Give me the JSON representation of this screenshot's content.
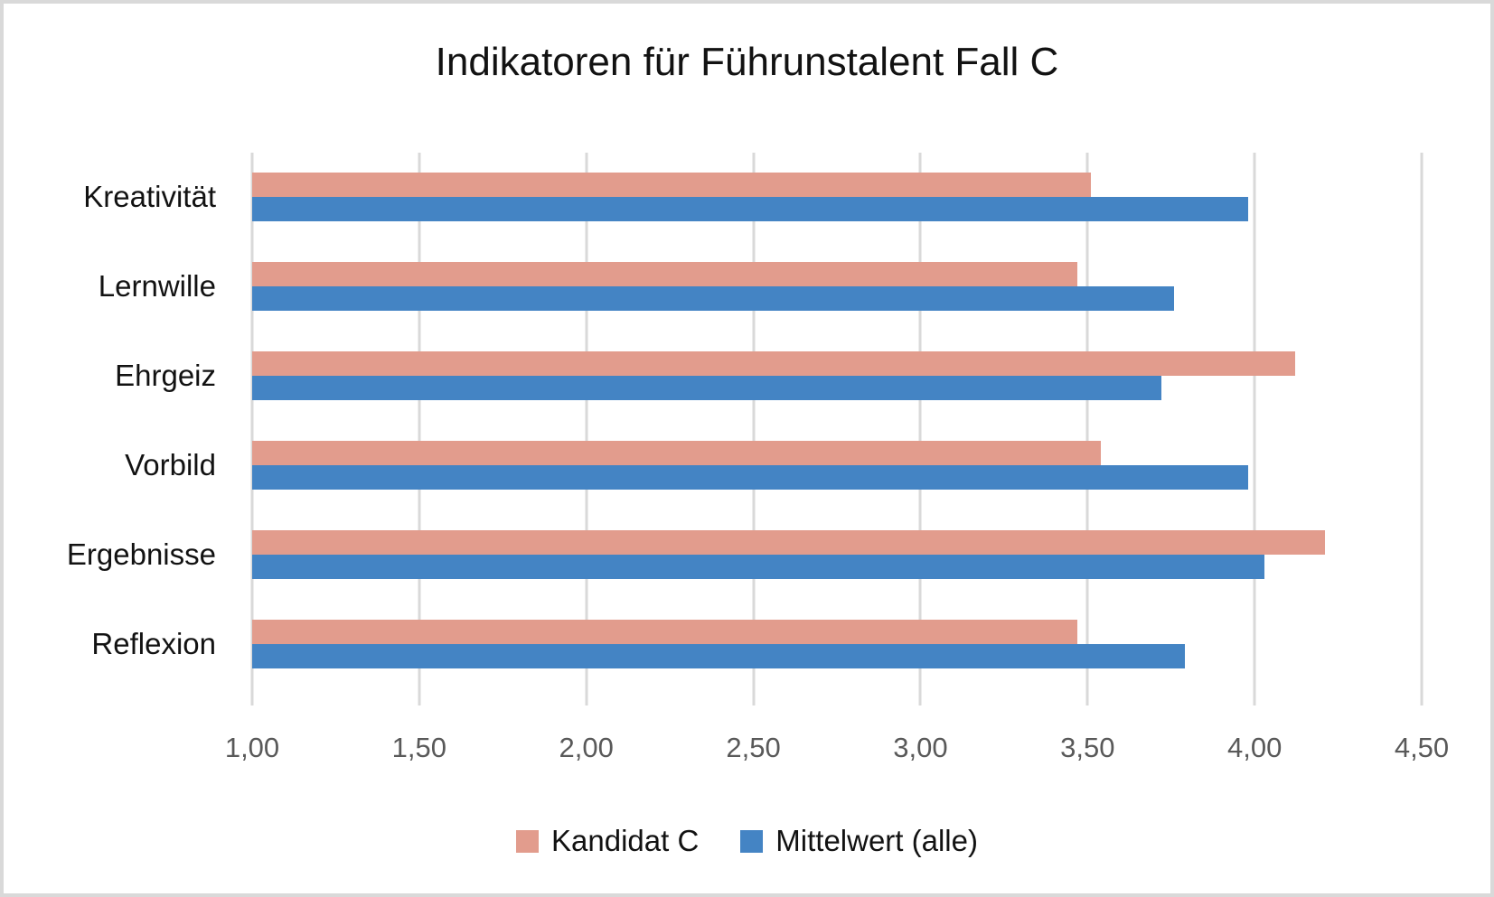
{
  "frame": {
    "border_color": "#d9d9d9",
    "background": "#ffffff"
  },
  "chart_data": {
    "type": "bar",
    "orientation": "horizontal",
    "title": "Indikatoren für Führunstalent Fall C",
    "categories": [
      "Kreativität",
      "Lernwille",
      "Ehrgeiz",
      "Vorbild",
      "Ergebnisse",
      "Reflexion"
    ],
    "series": [
      {
        "name": "Kandidat C",
        "color": "#e29c8d",
        "values": [
          3.51,
          3.47,
          4.12,
          3.54,
          4.21,
          3.47
        ]
      },
      {
        "name": "Mittelwert (alle)",
        "color": "#4484c4",
        "values": [
          3.98,
          3.76,
          3.72,
          3.98,
          4.03,
          3.79
        ]
      }
    ],
    "x_axis": {
      "min": 1.0,
      "max": 4.5,
      "step": 0.5,
      "tick_labels": [
        "1,00",
        "1,50",
        "2,00",
        "2,50",
        "3,00",
        "3,50",
        "4,00",
        "4,50"
      ],
      "label_color": "#595959"
    },
    "grid": true,
    "gridline_color": "#d9d9d9",
    "legend_position": "bottom",
    "title_color": "#121212",
    "category_label_color": "#121212"
  }
}
